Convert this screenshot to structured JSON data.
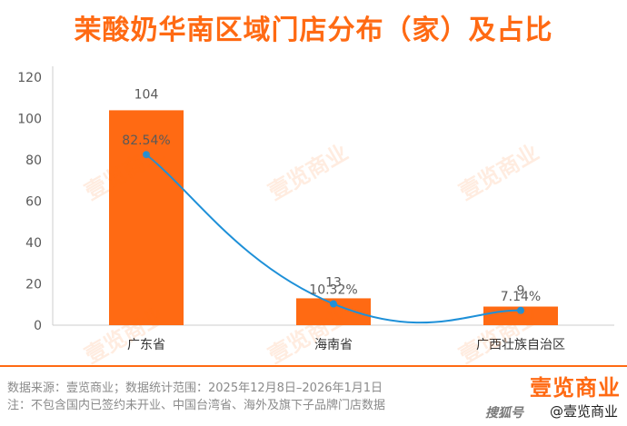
{
  "title": "茉酸奶华南区域门店分布（家）及占比",
  "footer": {
    "source": "数据来源：壹览商业；数据统计范围：2025年12月8日–2026年1月1日",
    "note": "注：不包含国内已签约未开业、中国台湾省、海外及旗下子品牌门店数据"
  },
  "brand": {
    "logo_text": "壹览商业",
    "attribution": "@壹览商业",
    "platform_mark": "搜狐号"
  },
  "watermark": "壹览商业",
  "colors": {
    "title": "#ff6a13",
    "bar": "#ff6a13",
    "line": "#1e90d8",
    "axis": "#cccccc",
    "divider": "#ff6a13",
    "text": "#595959"
  },
  "chart_data": {
    "type": "bar",
    "categories": [
      "广东省",
      "海南省",
      "广西壮族自治区"
    ],
    "values": [
      104,
      13,
      9
    ],
    "value_labels": [
      "104",
      "13",
      "9"
    ],
    "ylim": [
      0,
      120
    ],
    "yticks": [
      0,
      20,
      40,
      60,
      80,
      100,
      120
    ],
    "grid": false,
    "series": [
      {
        "type": "bar",
        "values": [
          104,
          13,
          9
        ]
      },
      {
        "type": "line",
        "values": [
          82.54,
          10.32,
          7.14
        ],
        "labels": [
          "82.54%",
          "10.32%",
          "7.14%"
        ],
        "smooth": true
      }
    ],
    "title": "",
    "xlabel": "",
    "ylabel": ""
  }
}
